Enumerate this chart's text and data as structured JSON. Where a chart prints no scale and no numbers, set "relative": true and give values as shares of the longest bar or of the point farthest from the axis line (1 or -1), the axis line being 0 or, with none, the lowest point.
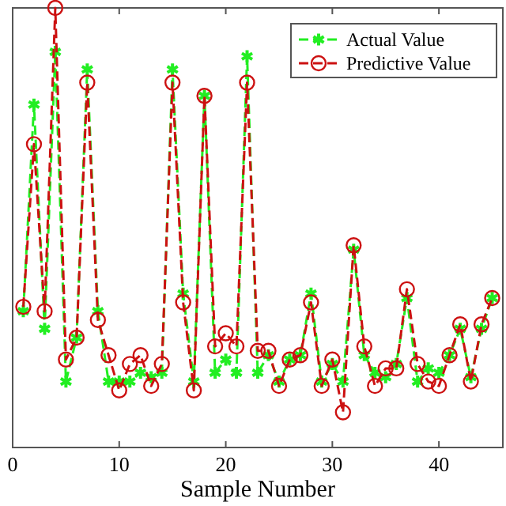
{
  "chart_data": {
    "type": "line",
    "xlabel": "Sample Number",
    "relative": true,
    "xlim": [
      0,
      46
    ],
    "xticks": [
      0,
      10,
      20,
      30,
      40
    ],
    "x": [
      1,
      2,
      3,
      4,
      5,
      6,
      7,
      8,
      9,
      10,
      11,
      12,
      13,
      14,
      15,
      16,
      17,
      18,
      19,
      20,
      21,
      22,
      23,
      24,
      25,
      26,
      27,
      28,
      29,
      30,
      31,
      32,
      33,
      34,
      35,
      36,
      37,
      38,
      39,
      40,
      41,
      42,
      43,
      44,
      45
    ],
    "legend": "top right",
    "line_style": "dashed",
    "series": [
      {
        "name": "Actual Value",
        "color": "#22ee22",
        "marker": "cross",
        "values": [
          0.31,
          0.78,
          0.27,
          0.9,
          0.15,
          0.25,
          0.86,
          0.31,
          0.15,
          0.15,
          0.15,
          0.17,
          0.16,
          0.17,
          0.86,
          0.35,
          0.15,
          0.8,
          0.17,
          0.2,
          0.17,
          0.89,
          0.17,
          0.21,
          0.15,
          0.2,
          0.21,
          0.35,
          0.15,
          0.19,
          0.15,
          0.45,
          0.21,
          0.17,
          0.16,
          0.19,
          0.34,
          0.15,
          0.18,
          0.17,
          0.21,
          0.27,
          0.16,
          0.27,
          0.34
        ]
      },
      {
        "name": "Predictive Value",
        "color": "#cc1111",
        "marker": "circle",
        "values": [
          0.32,
          0.69,
          0.31,
          1.0,
          0.2,
          0.25,
          0.83,
          0.29,
          0.21,
          0.13,
          0.19,
          0.21,
          0.14,
          0.19,
          0.83,
          0.33,
          0.13,
          0.8,
          0.23,
          0.26,
          0.23,
          0.83,
          0.22,
          0.22,
          0.14,
          0.2,
          0.21,
          0.33,
          0.14,
          0.2,
          0.08,
          0.46,
          0.23,
          0.14,
          0.18,
          0.18,
          0.36,
          0.19,
          0.15,
          0.14,
          0.21,
          0.28,
          0.15,
          0.28,
          0.34
        ]
      }
    ]
  }
}
